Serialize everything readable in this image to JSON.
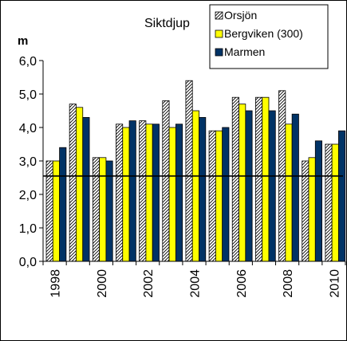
{
  "chart_data": {
    "type": "bar",
    "title": "Siktdjup",
    "ylabel": "m",
    "xlabel": "",
    "ylim": [
      0,
      6
    ],
    "yticks": [
      "0,0",
      "1,0",
      "2,0",
      "3,0",
      "4,0",
      "5,0",
      "6,0"
    ],
    "grid": false,
    "legend_position": "top-right",
    "categories": [
      "1998",
      "1999",
      "2000",
      "2001",
      "2002",
      "2003",
      "2004",
      "2005",
      "2006",
      "2007",
      "2008",
      "2009",
      "2010"
    ],
    "xtick_labels": [
      "1998",
      "",
      "2000",
      "",
      "2002",
      "",
      "2004",
      "",
      "2006",
      "",
      "2008",
      "",
      "2010"
    ],
    "series": [
      {
        "name": "Orsjön",
        "color": "#ffffff",
        "pattern": "diagonal-hatch",
        "values": [
          3.0,
          4.7,
          3.1,
          4.1,
          4.2,
          4.8,
          5.4,
          3.9,
          4.9,
          4.9,
          5.1,
          3.0,
          3.5
        ]
      },
      {
        "name": "Bergviken (300)",
        "color": "#ffff00",
        "values": [
          3.0,
          4.6,
          3.1,
          4.0,
          4.1,
          4.0,
          4.5,
          3.9,
          4.7,
          4.9,
          4.1,
          3.1,
          3.5
        ]
      },
      {
        "name": "Marmen",
        "color": "#003366",
        "values": [
          3.4,
          4.3,
          3.0,
          4.2,
          4.1,
          4.1,
          4.3,
          4.0,
          4.5,
          4.5,
          4.4,
          3.6,
          3.9
        ]
      }
    ],
    "reference_line": {
      "y": 2.55,
      "color": "#000000"
    }
  }
}
